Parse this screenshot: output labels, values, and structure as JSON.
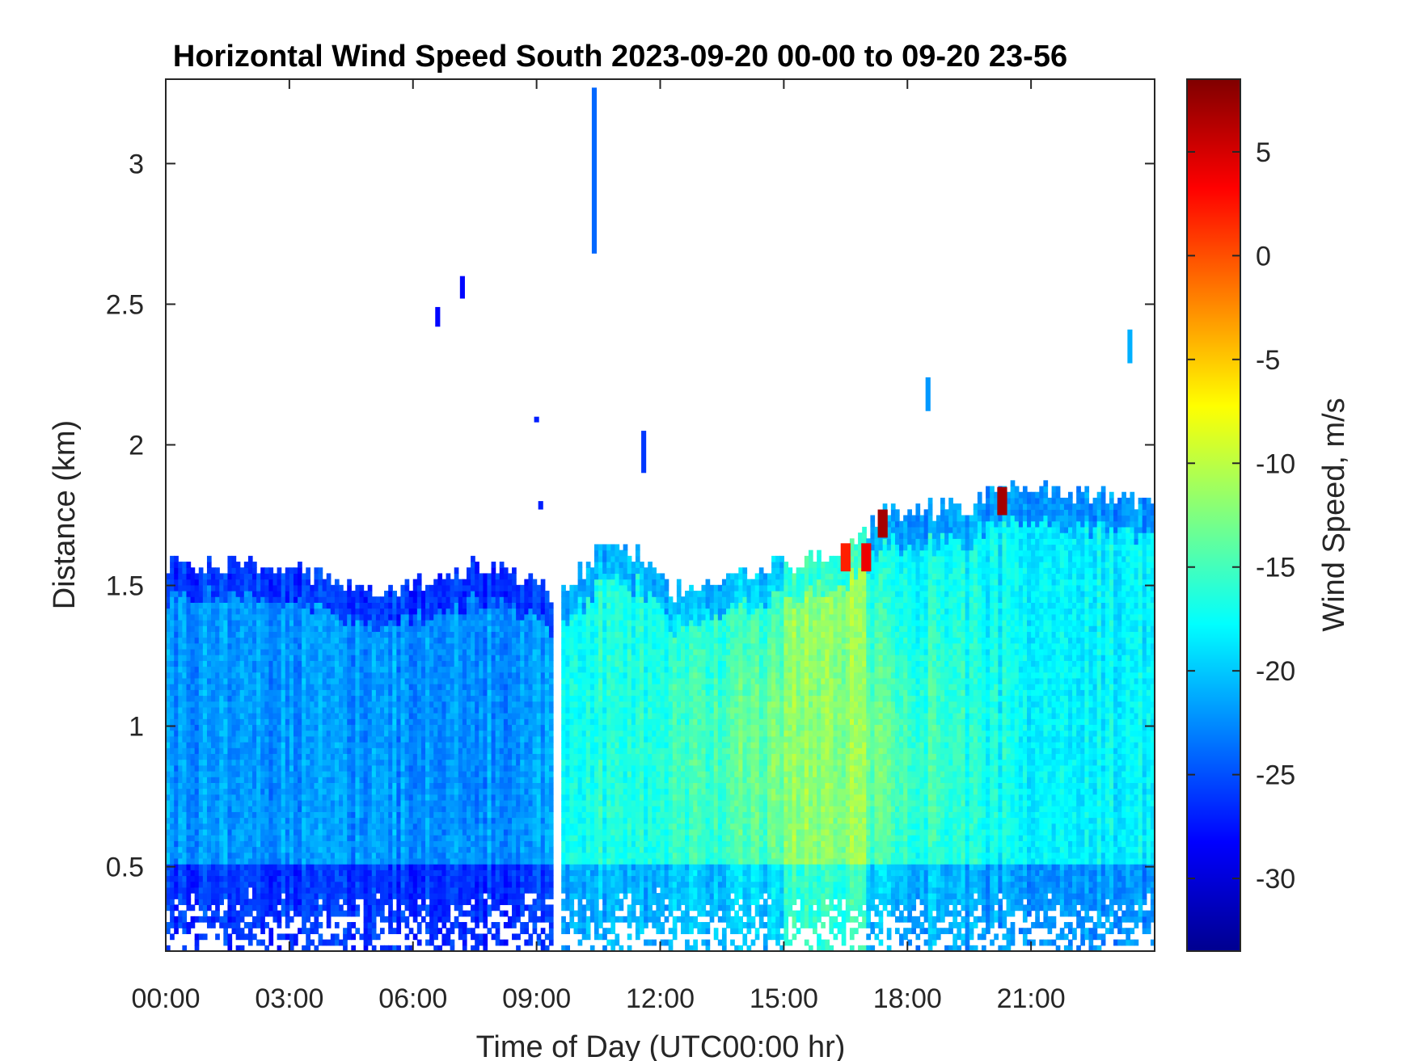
{
  "chart_data": {
    "type": "heatmap",
    "title": "Horizontal Wind Speed South 2023-09-20 00-00 to 09-20 23-56",
    "xlabel": "Time of Day (UTC00:00 hr)",
    "ylabel": "Distance (km)",
    "colorbar_label": "Wind Speed, m/s",
    "x_unit": "hours",
    "xlim": [
      0,
      24
    ],
    "ylim": [
      0.2,
      3.3
    ],
    "clim": [
      -33.5,
      8.5
    ],
    "colormap": "jet",
    "x_ticks": [
      {
        "value": 0,
        "label": "00:00"
      },
      {
        "value": 3,
        "label": "03:00"
      },
      {
        "value": 6,
        "label": "06:00"
      },
      {
        "value": 9,
        "label": "09:00"
      },
      {
        "value": 12,
        "label": "12:00"
      },
      {
        "value": 15,
        "label": "15:00"
      },
      {
        "value": 18,
        "label": "18:00"
      },
      {
        "value": 21,
        "label": "21:00"
      }
    ],
    "y_ticks": [
      {
        "value": 0.5,
        "label": "0.5"
      },
      {
        "value": 1,
        "label": "1"
      },
      {
        "value": 1.5,
        "label": "1.5"
      },
      {
        "value": 2,
        "label": "2"
      },
      {
        "value": 2.5,
        "label": "2.5"
      },
      {
        "value": 3,
        "label": "3"
      }
    ],
    "colorbar_ticks": [
      {
        "value": 5,
        "label": "5"
      },
      {
        "value": 0,
        "label": "0"
      },
      {
        "value": -5,
        "label": "-5"
      },
      {
        "value": -10,
        "label": "-10"
      },
      {
        "value": -15,
        "label": "-15"
      },
      {
        "value": -20,
        "label": "-20"
      },
      {
        "value": -25,
        "label": "-25"
      },
      {
        "value": -30,
        "label": "-30"
      }
    ],
    "data_top_profile": [
      {
        "hour": 0,
        "top_km": 1.58
      },
      {
        "hour": 3,
        "top_km": 1.57
      },
      {
        "hour": 4.3,
        "top_km": 1.5
      },
      {
        "hour": 6,
        "top_km": 1.5
      },
      {
        "hour": 8,
        "top_km": 1.58
      },
      {
        "hour": 9.5,
        "top_km": 1.45
      },
      {
        "hour": 10.5,
        "top_km": 1.62
      },
      {
        "hour": 11.5,
        "top_km": 1.62
      },
      {
        "hour": 12.3,
        "top_km": 1.47
      },
      {
        "hour": 14.5,
        "top_km": 1.55
      },
      {
        "hour": 16.5,
        "top_km": 1.62
      },
      {
        "hour": 17.5,
        "top_km": 1.76
      },
      {
        "hour": 19.5,
        "top_km": 1.78
      },
      {
        "hour": 20.5,
        "top_km": 1.86
      },
      {
        "hour": 24,
        "top_km": 1.78
      }
    ],
    "gap_hours": [
      9.4,
      9.6
    ],
    "speed_regimes": [
      {
        "from_hour": 0,
        "to_hour": 9.5,
        "typical_speed": -22
      },
      {
        "from_hour": 9.6,
        "to_hour": 15,
        "typical_speed": -17
      },
      {
        "from_hour": 15,
        "to_hour": 17,
        "typical_speed": -12
      },
      {
        "from_hour": 17,
        "to_hour": 24,
        "typical_speed": -18
      }
    ],
    "wind_maximum": {
      "hour": 15.8,
      "km": 0.9,
      "speed": -12
    },
    "hot_spots": [
      {
        "hour": 16.5,
        "km": 1.6,
        "speed": 2
      },
      {
        "hour": 17.0,
        "km": 1.6,
        "speed": 4
      },
      {
        "hour": 17.4,
        "km": 1.72,
        "speed": 7
      },
      {
        "hour": 20.3,
        "km": 1.8,
        "speed": 7
      }
    ],
    "isolated_returns": [
      {
        "hour": 10.4,
        "from_km": 2.68,
        "to_km": 3.27,
        "speed": -24
      },
      {
        "hour": 7.2,
        "from_km": 2.52,
        "to_km": 2.6,
        "speed": -28
      },
      {
        "hour": 6.6,
        "from_km": 2.42,
        "to_km": 2.49,
        "speed": -28
      },
      {
        "hour": 9.0,
        "from_km": 2.08,
        "to_km": 2.1,
        "speed": -27
      },
      {
        "hour": 11.6,
        "from_km": 1.9,
        "to_km": 2.05,
        "speed": -26
      },
      {
        "hour": 9.1,
        "from_km": 1.77,
        "to_km": 1.8,
        "speed": -27
      },
      {
        "hour": 18.5,
        "from_km": 2.12,
        "to_km": 2.24,
        "speed": -22
      },
      {
        "hour": 23.4,
        "from_km": 2.29,
        "to_km": 2.41,
        "speed": -21
      }
    ]
  }
}
